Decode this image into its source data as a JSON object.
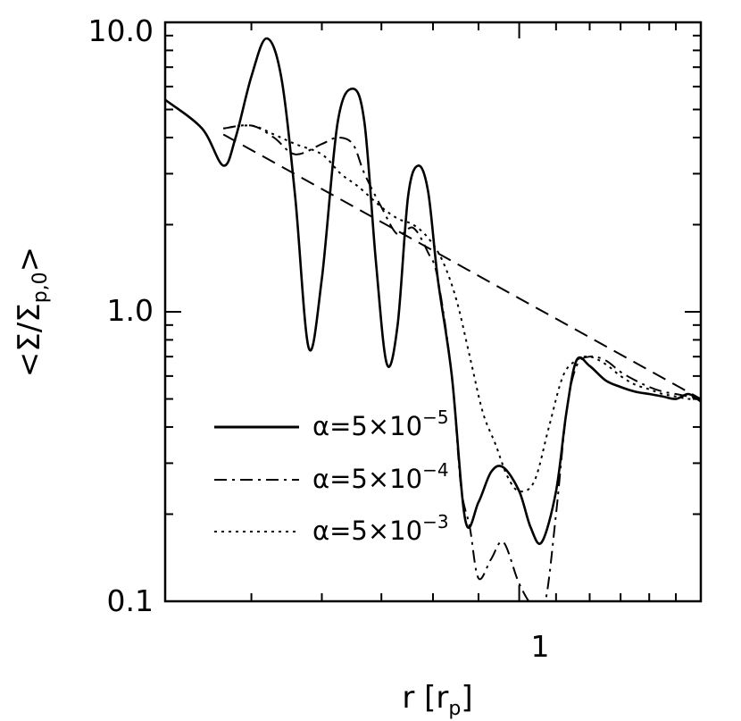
{
  "chart_data": {
    "type": "line",
    "xlabel": "r  [r",
    "xlabel_sub": "p",
    "xlabel_end": "]",
    "ylabel": "<Σ/Σ",
    "ylabel_sub": "p,0",
    "ylabel_end": ">",
    "x_scale": "log",
    "y_scale": "log",
    "xlim": [
      0.4,
      1.6
    ],
    "ylim": [
      0.1,
      10.0
    ],
    "x_tick_labels": [
      "1"
    ],
    "y_tick_labels": [
      "0.1",
      "1.0",
      "10.0"
    ],
    "legend_position": "lower-left",
    "grid": false,
    "series": [
      {
        "name": "α=5×10",
        "name_exp": "−5",
        "style": "solid",
        "x": [
          0.4,
          0.44,
          0.465,
          0.48,
          0.5,
          0.52,
          0.54,
          0.56,
          0.58,
          0.6,
          0.625,
          0.65,
          0.67,
          0.69,
          0.71,
          0.73,
          0.75,
          0.77,
          0.79,
          0.81,
          0.84,
          0.87,
          0.9,
          0.93,
          0.96,
          1.0,
          1.03,
          1.06,
          1.1,
          1.13,
          1.16,
          1.2,
          1.25,
          1.3,
          1.35,
          1.4,
          1.45,
          1.5,
          1.55,
          1.6
        ],
        "y": [
          5.4,
          4.3,
          3.2,
          4.0,
          6.5,
          8.8,
          6.5,
          2.5,
          0.75,
          1.3,
          4.5,
          5.9,
          4.5,
          1.5,
          0.66,
          0.9,
          2.5,
          3.2,
          2.6,
          1.3,
          0.6,
          0.19,
          0.22,
          0.28,
          0.29,
          0.24,
          0.18,
          0.16,
          0.24,
          0.45,
          0.68,
          0.65,
          0.58,
          0.55,
          0.53,
          0.52,
          0.51,
          0.5,
          0.52,
          0.49
        ]
      },
      {
        "name": "α=5×10",
        "name_exp": "−4",
        "style": "dash-dot",
        "x": [
          0.465,
          0.5,
          0.53,
          0.56,
          0.6,
          0.625,
          0.65,
          0.67,
          0.7,
          0.73,
          0.76,
          0.79,
          0.81,
          0.84,
          0.86,
          0.88,
          0.9,
          0.93,
          0.96,
          1.0,
          1.04,
          1.07,
          1.1,
          1.13,
          1.16,
          1.2,
          1.25,
          1.3,
          1.35,
          1.4,
          1.45,
          1.5,
          1.55,
          1.6
        ],
        "y": [
          4.3,
          4.4,
          4.0,
          3.5,
          3.8,
          4.0,
          3.8,
          3.0,
          2.3,
          1.85,
          1.95,
          1.6,
          1.3,
          0.6,
          0.25,
          0.18,
          0.12,
          0.14,
          0.16,
          0.115,
          0.095,
          0.1,
          0.2,
          0.45,
          0.65,
          0.7,
          0.68,
          0.62,
          0.58,
          0.55,
          0.53,
          0.52,
          0.51,
          0.5
        ]
      },
      {
        "name": "α=5×10",
        "name_exp": "−3",
        "style": "dotted",
        "x": [
          0.465,
          0.5,
          0.53,
          0.56,
          0.6,
          0.63,
          0.66,
          0.7,
          0.73,
          0.76,
          0.79,
          0.82,
          0.85,
          0.88,
          0.91,
          0.94,
          0.97,
          1.0,
          1.04,
          1.08,
          1.12,
          1.16,
          1.2,
          1.25,
          1.3,
          1.35,
          1.4,
          1.45,
          1.5,
          1.55,
          1.6
        ],
        "y": [
          4.3,
          4.4,
          4.1,
          3.8,
          3.5,
          3.0,
          2.7,
          2.3,
          2.1,
          2.0,
          1.8,
          1.5,
          1.1,
          0.7,
          0.45,
          0.35,
          0.27,
          0.24,
          0.26,
          0.4,
          0.6,
          0.68,
          0.7,
          0.66,
          0.6,
          0.56,
          0.54,
          0.52,
          0.51,
          0.5,
          0.5
        ]
      },
      {
        "name": "",
        "style": "dashed",
        "x": [
          0.465,
          1.6
        ],
        "y": [
          4.1,
          0.5
        ]
      }
    ]
  }
}
